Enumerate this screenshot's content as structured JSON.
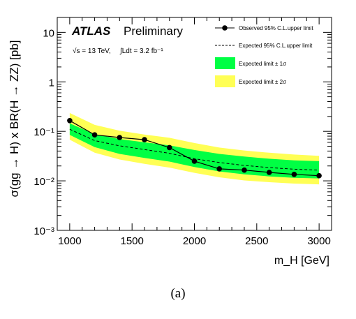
{
  "caption": "(a)",
  "chart_data": {
    "type": "line",
    "title": "",
    "experiment": "ATLAS",
    "status": "Preliminary",
    "energy_label": "√s = 13 TeV,",
    "lumi_label": "∫Ldt = 3.2 fb⁻¹",
    "xlabel": "m_H [GeV]",
    "ylabel": "σ(gg → H) x BR(H → ZZ) [pb]",
    "xlim": [
      900,
      3100
    ],
    "ylim": [
      0.001,
      20
    ],
    "yscale": "log",
    "xticks": [
      "1000",
      "1500",
      "2000",
      "2500",
      "3000"
    ],
    "yticks": [
      "10⁻³",
      "10⁻²",
      "10⁻¹",
      "1",
      "10"
    ],
    "legend_position": "top-right",
    "x": [
      1000,
      1200,
      1400,
      1600,
      1800,
      2000,
      2200,
      2400,
      2600,
      2800,
      3000
    ],
    "series": [
      {
        "name": "Observed 95% C.L.upper limit",
        "style": "solid-markers",
        "color": "#000000",
        "values": [
          0.165,
          0.085,
          0.075,
          0.068,
          0.047,
          0.025,
          0.0175,
          0.0165,
          0.0148,
          0.0135,
          0.0127
        ]
      },
      {
        "name": "Expected 95% C.L.upper limit",
        "style": "dashed",
        "color": "#000000",
        "values": [
          0.11,
          0.065,
          0.051,
          0.043,
          0.036,
          0.028,
          0.0235,
          0.0205,
          0.0185,
          0.0172,
          0.0165
        ]
      },
      {
        "name": "Expected limit ± 1σ",
        "style": "band",
        "color": "#00ff44",
        "lower": [
          0.085,
          0.048,
          0.035,
          0.029,
          0.0245,
          0.019,
          0.0155,
          0.0135,
          0.0123,
          0.0115,
          0.0112
        ],
        "upper": [
          0.145,
          0.088,
          0.07,
          0.06,
          0.052,
          0.042,
          0.035,
          0.031,
          0.028,
          0.026,
          0.025
        ]
      },
      {
        "name": "Expected limit ± 2σ",
        "style": "band",
        "color": "#ffff55",
        "lower": [
          0.068,
          0.037,
          0.027,
          0.022,
          0.0185,
          0.0145,
          0.0118,
          0.0102,
          0.0094,
          0.0088,
          0.0085
        ],
        "upper": [
          0.235,
          0.135,
          0.103,
          0.086,
          0.074,
          0.058,
          0.047,
          0.041,
          0.037,
          0.034,
          0.032
        ]
      }
    ]
  }
}
